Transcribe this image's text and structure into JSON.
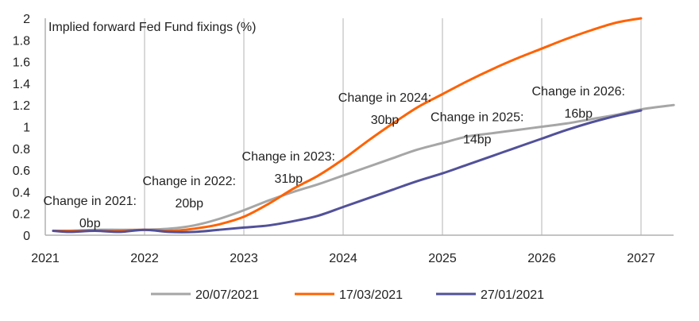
{
  "chart_data": {
    "type": "line",
    "title": "Implied forward Fed Fund fixings (%)",
    "xlabel": "",
    "ylabel": "",
    "xlim": [
      2021.0,
      2027.33
    ],
    "ylim": [
      0,
      2
    ],
    "x_ticks": [
      "2021",
      "2022",
      "2023",
      "2024",
      "2025",
      "2026",
      "2027"
    ],
    "y_ticks": [
      "0",
      "0.2",
      "0.4",
      "0.6",
      "0.8",
      "1",
      "1.2",
      "1.4",
      "1.6",
      "1.8",
      "2"
    ],
    "grid": "vertical",
    "legend_position": "bottom",
    "series": [
      {
        "name": "20/07/2021",
        "color": "#a6a6a6",
        "x": [
          2021.08,
          2021.25,
          2021.5,
          2021.75,
          2022.0,
          2022.25,
          2022.5,
          2022.75,
          2023.0,
          2023.25,
          2023.5,
          2023.75,
          2024.0,
          2024.25,
          2024.5,
          2024.75,
          2025.0,
          2025.25,
          2025.5,
          2025.75,
          2026.0,
          2026.25,
          2026.5,
          2026.75,
          2027.0,
          2027.33
        ],
        "y": [
          0.04,
          0.04,
          0.05,
          0.05,
          0.05,
          0.06,
          0.09,
          0.15,
          0.23,
          0.32,
          0.4,
          0.47,
          0.55,
          0.63,
          0.71,
          0.79,
          0.85,
          0.91,
          0.94,
          0.97,
          1.0,
          1.03,
          1.07,
          1.11,
          1.16,
          1.2
        ]
      },
      {
        "name": "17/03/2021",
        "color": "#ff6200",
        "x": [
          2021.08,
          2021.25,
          2021.5,
          2021.75,
          2022.0,
          2022.25,
          2022.5,
          2022.75,
          2023.0,
          2023.25,
          2023.5,
          2023.75,
          2024.0,
          2024.25,
          2024.5,
          2024.75,
          2025.0,
          2025.25,
          2025.5,
          2025.75,
          2026.0,
          2026.25,
          2026.5,
          2026.75,
          2027.0
        ],
        "y": [
          0.04,
          0.04,
          0.04,
          0.04,
          0.05,
          0.04,
          0.06,
          0.1,
          0.17,
          0.29,
          0.43,
          0.55,
          0.7,
          0.87,
          1.03,
          1.18,
          1.3,
          1.42,
          1.53,
          1.63,
          1.72,
          1.81,
          1.89,
          1.96,
          2.0
        ]
      },
      {
        "name": "27/01/2021",
        "color": "#525199",
        "x": [
          2021.08,
          2021.25,
          2021.5,
          2021.75,
          2022.0,
          2022.25,
          2022.5,
          2022.75,
          2023.0,
          2023.25,
          2023.5,
          2023.75,
          2024.0,
          2024.25,
          2024.5,
          2024.75,
          2025.0,
          2025.25,
          2025.5,
          2025.75,
          2026.0,
          2026.25,
          2026.5,
          2026.75,
          2027.0
        ],
        "y": [
          0.04,
          0.03,
          0.04,
          0.03,
          0.05,
          0.03,
          0.03,
          0.05,
          0.07,
          0.09,
          0.13,
          0.18,
          0.26,
          0.34,
          0.42,
          0.5,
          0.57,
          0.65,
          0.73,
          0.81,
          0.89,
          0.97,
          1.04,
          1.1,
          1.15
        ]
      }
    ],
    "annotations": [
      {
        "lines": [
          "Change in 2021:",
          "0bp"
        ],
        "x": 2021.45,
        "y": 0.28
      },
      {
        "lines": [
          "Change in 2022:",
          "20bp"
        ],
        "x": 2022.45,
        "y": 0.46
      },
      {
        "lines": [
          "Change in 2023:",
          "31bp"
        ],
        "x": 2023.45,
        "y": 0.69
      },
      {
        "lines": [
          "Change in 2024:",
          "30bp"
        ],
        "x": 2024.42,
        "y": 1.23
      },
      {
        "lines": [
          "Change in 2025:",
          "14bp"
        ],
        "x": 2025.35,
        "y": 1.05
      },
      {
        "lines": [
          "Change in 2026:",
          "16bp"
        ],
        "x": 2026.37,
        "y": 1.29
      }
    ]
  }
}
